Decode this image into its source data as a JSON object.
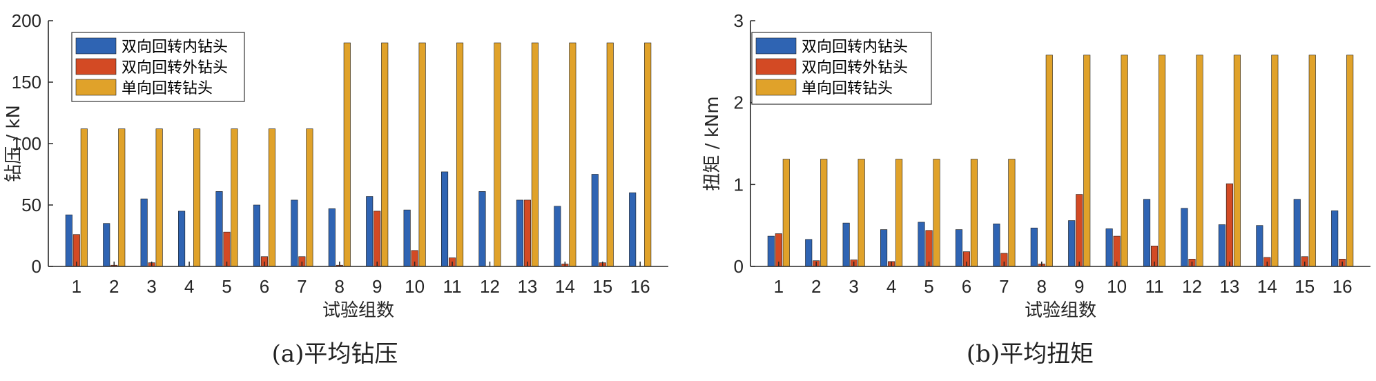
{
  "colors": {
    "inner": "#2f64b3",
    "outer": "#d34a24",
    "single": "#e0a22a",
    "axis": "#262626"
  },
  "captions": [
    "(a)平均钻压",
    "(b)平均扭矩"
  ],
  "chart_data": [
    {
      "type": "bar",
      "xlabel": "试验组数",
      "ylabel": "钻压 / kN",
      "ylim": [
        0,
        200
      ],
      "yticks": [
        "0",
        "50",
        "100",
        "150",
        "200"
      ],
      "categories": [
        "1",
        "2",
        "3",
        "4",
        "5",
        "6",
        "7",
        "8",
        "9",
        "10",
        "11",
        "12",
        "13",
        "14",
        "15",
        "16"
      ],
      "legend_position": "top-left",
      "series": [
        {
          "name": "双向回转内钻头",
          "values": [
            42,
            35,
            55,
            45,
            61,
            50,
            54,
            47,
            57,
            46,
            77,
            61,
            54,
            49,
            75,
            60
          ]
        },
        {
          "name": "双向回转外钻头",
          "values": [
            26,
            1,
            3,
            0,
            28,
            8,
            8,
            1,
            45,
            13,
            7,
            0,
            54,
            2,
            3,
            0
          ]
        },
        {
          "name": "单向回转钻头",
          "values": [
            112,
            112,
            112,
            112,
            112,
            112,
            112,
            182,
            182,
            182,
            182,
            182,
            182,
            182,
            182,
            182
          ]
        }
      ]
    },
    {
      "type": "bar",
      "xlabel": "试验组数",
      "ylabel": "扭矩 / kNm",
      "ylim": [
        0,
        3
      ],
      "yticks": [
        "0",
        "1",
        "2",
        "3"
      ],
      "categories": [
        "1",
        "2",
        "3",
        "4",
        "5",
        "6",
        "7",
        "8",
        "9",
        "10",
        "11",
        "12",
        "13",
        "14",
        "15",
        "16"
      ],
      "legend_position": "top-left",
      "series": [
        {
          "name": "双向回转内钻头",
          "values": [
            0.37,
            0.33,
            0.53,
            0.45,
            0.54,
            0.45,
            0.52,
            0.47,
            0.56,
            0.46,
            0.82,
            0.71,
            0.51,
            0.5,
            0.82,
            0.68
          ]
        },
        {
          "name": "双向回转外钻头",
          "values": [
            0.4,
            0.07,
            0.08,
            0.06,
            0.44,
            0.18,
            0.16,
            0.03,
            0.88,
            0.37,
            0.25,
            0.09,
            1.01,
            0.11,
            0.12,
            0.09
          ]
        },
        {
          "name": "单向回转钻头",
          "values": [
            1.31,
            1.31,
            1.31,
            1.31,
            1.31,
            1.31,
            1.31,
            2.58,
            2.58,
            2.58,
            2.58,
            2.58,
            2.58,
            2.58,
            2.58,
            2.58
          ]
        }
      ]
    }
  ]
}
